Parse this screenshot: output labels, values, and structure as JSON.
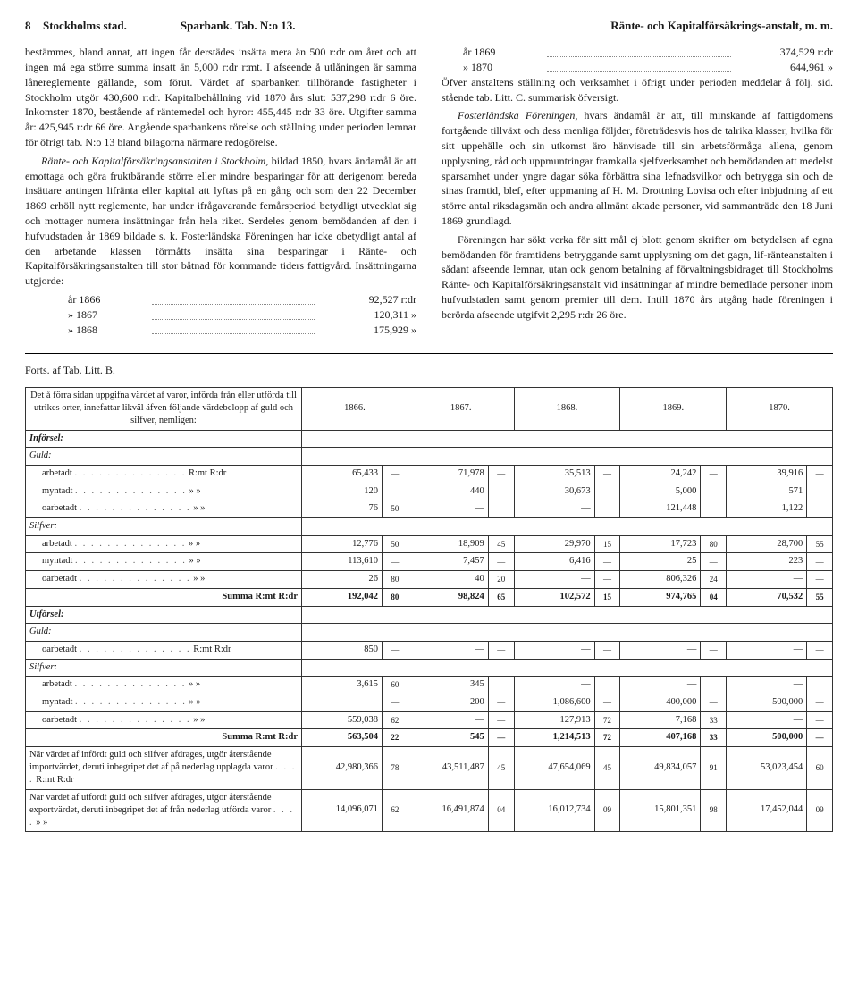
{
  "header": {
    "page": "8",
    "left": "Stockholms stad.",
    "center": "Sparbank.  Tab. N:o 13.",
    "right": "Ränte- och Kapitalförsäkrings-anstalt, m. m."
  },
  "left_col": {
    "p1": "bestämmes, bland annat, att ingen får derstädes insätta mera än 500 r:dr om året och att ingen må ega större summa insatt än 5,000 r:dr r:mt. I afseende å utlåningen är samma lånereglemente gällande, som förut. Värdet af sparbanken tillhörande fastigheter i Stockholm utgör 430,600 r:dr. Kapitalbehållning vid 1870 års slut: 537,298 r:dr 6 öre. Inkomster 1870, bestående af räntemedel och hyror: 455,445 r:dr 33 öre. Utgifter samma år: 425,945 r:dr 66 öre. Angående sparbankens rörelse och ställning under perioden lemnar för öfrigt tab. N:o 13 bland bilagorna närmare redogörelse.",
    "margin_note": "Tab. N:o 13.",
    "p2a": "Ränte- och Kapitalförsäkringsanstalten i Stockholm",
    "p2b": ", bildad 1850, hvars ändamål är att emottaga och göra fruktbärande större eller mindre besparingar för att derigenom bereda insättare antingen lifränta eller kapital att lyftas på en gång och som den 22 December 1869 erhöll nytt reglemente, har under ifrågavarande femårsperiod betydligt utvecklat sig och mottager numera insättningar från hela riket. Serdeles genom bemödanden af den i hufvudstaden år 1869 bildade s. k. Fosterländska Föreningen har icke obetydligt antal af den arbetande klassen förmåtts insätta sina besparingar i Ränte- och Kapitalförsäkringsanstalten till stor båtnad för kommande tiders fattigvård. Insättningarna utgjorde:",
    "years": [
      {
        "y": "år 1866",
        "v": "92,527 r:dr"
      },
      {
        "y": "» 1867",
        "v": "120,311  »"
      },
      {
        "y": "» 1868",
        "v": "175,929  »"
      }
    ]
  },
  "right_col": {
    "years": [
      {
        "y": "år 1869",
        "v": "374,529 r:dr"
      },
      {
        "y": "» 1870",
        "v": "644,961  »"
      }
    ],
    "p1": "Öfver anstaltens ställning och verksamhet i öfrigt under perioden meddelar å följ. sid. stående tab. Litt. C. summarisk öfversigt.",
    "margin_note": "Tab. Litt. C.",
    "p2a": "Fosterländska Föreningen",
    "p2b": ", hvars ändamål är att, till minskande af fattigdomens fortgående tillväxt och dess menliga följder, företrädesvis hos de talrika klasser, hvilka för sitt uppehälle och sin utkomst äro hänvisade till sin arbetsförmåga allena, genom upplysning, råd och uppmuntringar framkalla sjelfverksamhet och bemödanden att medelst sparsamhet under yngre dagar söka förbättra sina lefnadsvilkor och betrygga sin och de sinas framtid, blef, efter uppmaning af H. M. Drottning Lovisa och efter inbjudning af ett större antal riksdagsmän och andra allmänt aktade personer, vid sammanträde den 18 Juni 1869 grundlagd.",
    "p3": "Föreningen har sökt verka för sitt mål ej blott genom skrifter om betydelsen af egna bemödanden för framtidens betryggande samt upplysning om det gagn, lif-ränteanstalten i sådant afseende lemnar, utan ock genom betalning af förvaltningsbidraget till Stockholms Ränte- och Kapitalförsäkringsanstalt vid insättningar af mindre bemedlade personer inom hufvudstaden samt genom premier till dem. Intill 1870 års utgång hade föreningen i berörda afseende utgifvit 2,295 r:dr 26 öre."
  },
  "forts": "Forts. af Tab. Litt. B.",
  "table": {
    "desc": "Det å förra sidan uppgifna värdet af varor, införda från eller utförda till utrikes orter, innefattar likväl äfven följande värdebelopp af guld och silfver, nemligen:",
    "year_headers": [
      "1866.",
      "1867.",
      "1868.",
      "1869.",
      "1870."
    ],
    "sections": [
      {
        "title": "Införsel:",
        "groups": [
          {
            "name": "Guld:",
            "rows": [
              {
                "label": "arbetadt",
                "unit": "R:mt R:dr",
                "v": [
                  [
                    "65,433",
                    "—"
                  ],
                  [
                    "71,978",
                    "—"
                  ],
                  [
                    "35,513",
                    "—"
                  ],
                  [
                    "24,242",
                    "—"
                  ],
                  [
                    "39,916",
                    "—"
                  ]
                ]
              },
              {
                "label": "myntadt",
                "unit": "»    »",
                "v": [
                  [
                    "120",
                    "—"
                  ],
                  [
                    "440",
                    "—"
                  ],
                  [
                    "30,673",
                    "—"
                  ],
                  [
                    "5,000",
                    "—"
                  ],
                  [
                    "571",
                    "—"
                  ]
                ]
              },
              {
                "label": "oarbetadt",
                "unit": "»    »",
                "v": [
                  [
                    "76",
                    "50"
                  ],
                  [
                    "—",
                    "—"
                  ],
                  [
                    "—",
                    "—"
                  ],
                  [
                    "121,448",
                    "—"
                  ],
                  [
                    "1,122",
                    "—"
                  ]
                ]
              }
            ]
          },
          {
            "name": "Silfver:",
            "rows": [
              {
                "label": "arbetadt",
                "unit": "»    »",
                "v": [
                  [
                    "12,776",
                    "50"
                  ],
                  [
                    "18,909",
                    "45"
                  ],
                  [
                    "29,970",
                    "15"
                  ],
                  [
                    "17,723",
                    "80"
                  ],
                  [
                    "28,700",
                    "55"
                  ]
                ]
              },
              {
                "label": "myntadt",
                "unit": "»    »",
                "v": [
                  [
                    "113,610",
                    "—"
                  ],
                  [
                    "7,457",
                    "—"
                  ],
                  [
                    "6,416",
                    "—"
                  ],
                  [
                    "25",
                    "—"
                  ],
                  [
                    "223",
                    "—"
                  ]
                ]
              },
              {
                "label": "oarbetadt",
                "unit": "»    »",
                "v": [
                  [
                    "26",
                    "80"
                  ],
                  [
                    "40",
                    "20"
                  ],
                  [
                    "—",
                    "—"
                  ],
                  [
                    "806,326",
                    "24"
                  ],
                  [
                    "—",
                    "—"
                  ]
                ]
              }
            ]
          }
        ],
        "sum": {
          "label": "Summa R:mt R:dr",
          "v": [
            [
              "192,042",
              "80"
            ],
            [
              "98,824",
              "65"
            ],
            [
              "102,572",
              "15"
            ],
            [
              "974,765",
              "04"
            ],
            [
              "70,532",
              "55"
            ]
          ]
        }
      },
      {
        "title": "Utförsel:",
        "groups": [
          {
            "name": "Guld:",
            "rows": [
              {
                "label": "oarbetadt",
                "unit": "R:mt R:dr",
                "v": [
                  [
                    "850",
                    "—"
                  ],
                  [
                    "—",
                    "—"
                  ],
                  [
                    "—",
                    "—"
                  ],
                  [
                    "—",
                    "—"
                  ],
                  [
                    "—",
                    "—"
                  ]
                ]
              }
            ]
          },
          {
            "name": "Silfver:",
            "rows": [
              {
                "label": "arbetadt",
                "unit": "»    »",
                "v": [
                  [
                    "3,615",
                    "60"
                  ],
                  [
                    "345",
                    "—"
                  ],
                  [
                    "—",
                    "—"
                  ],
                  [
                    "—",
                    "—"
                  ],
                  [
                    "—",
                    "—"
                  ]
                ]
              },
              {
                "label": "myntadt",
                "unit": "»    »",
                "v": [
                  [
                    "—",
                    "—"
                  ],
                  [
                    "200",
                    "—"
                  ],
                  [
                    "1,086,600",
                    "—"
                  ],
                  [
                    "400,000",
                    "—"
                  ],
                  [
                    "500,000",
                    "—"
                  ]
                ]
              },
              {
                "label": "oarbetadt",
                "unit": "»    »",
                "v": [
                  [
                    "559,038",
                    "62"
                  ],
                  [
                    "—",
                    "—"
                  ],
                  [
                    "127,913",
                    "72"
                  ],
                  [
                    "7,168",
                    "33"
                  ],
                  [
                    "—",
                    "—"
                  ]
                ]
              }
            ]
          }
        ],
        "sum": {
          "label": "Summa R:mt R:dr",
          "v": [
            [
              "563,504",
              "22"
            ],
            [
              "545",
              "—"
            ],
            [
              "1,214,513",
              "72"
            ],
            [
              "407,168",
              "33"
            ],
            [
              "500,000",
              "—"
            ]
          ]
        }
      }
    ],
    "footer_rows": [
      {
        "label": "När värdet af infördt guld och silfver afdrages, utgör återstående importvärdet, deruti inbegripet det af på nederlag upplagda varor",
        "unit": "R:mt R:dr",
        "v": [
          [
            "42,980,366",
            "78"
          ],
          [
            "43,511,487",
            "45"
          ],
          [
            "47,654,069",
            "45"
          ],
          [
            "49,834,057",
            "91"
          ],
          [
            "53,023,454",
            "60"
          ]
        ]
      },
      {
        "label": "När värdet af utfördt guld och silfver afdrages, utgör återstående exportvärdet, deruti inbegripet det af från nederlag utförda varor",
        "unit": "»    »",
        "v": [
          [
            "14,096,071",
            "62"
          ],
          [
            "16,491,874",
            "04"
          ],
          [
            "16,012,734",
            "09"
          ],
          [
            "15,801,351",
            "98"
          ],
          [
            "17,452,044",
            "09"
          ]
        ]
      }
    ]
  }
}
